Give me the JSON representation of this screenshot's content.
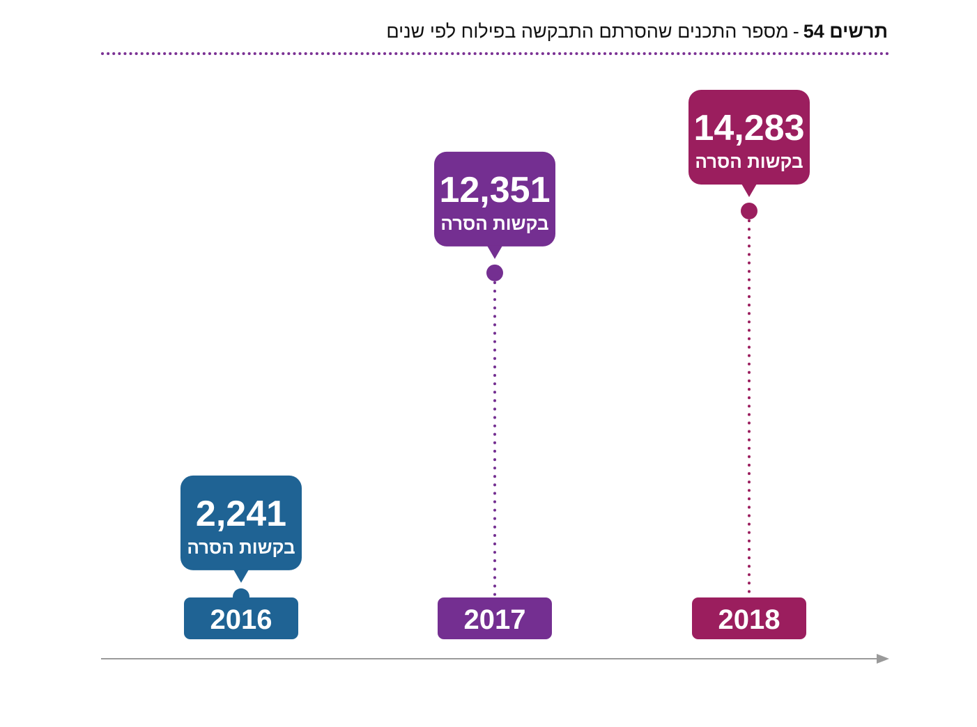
{
  "title": {
    "figure_label": "תרשים 54",
    "separator": "-",
    "text": "מספר התכנים שהסרתם התבקשה בפילוח לפי שנים"
  },
  "colors": {
    "title_rule": "#7b3294",
    "axis": "#9a9a9a",
    "2016": "#1f6394",
    "2017": "#742f91",
    "2018": "#9b1e5e"
  },
  "chart_data": {
    "type": "line",
    "title": "מספר התכנים שהסרתם התבקשה בפילוח לפי שנים",
    "figure_label": "תרשים 54",
    "xlabel": "",
    "ylabel": "",
    "grid": false,
    "categories": [
      "2016",
      "2017",
      "2018"
    ],
    "values": [
      2241,
      12351,
      14283
    ],
    "value_labels": [
      "2,241",
      "12,351",
      "14,283"
    ],
    "unit_label": "בקשות הסרה",
    "series_colors": [
      "#1f6394",
      "#742f91",
      "#9b1e5e"
    ]
  }
}
